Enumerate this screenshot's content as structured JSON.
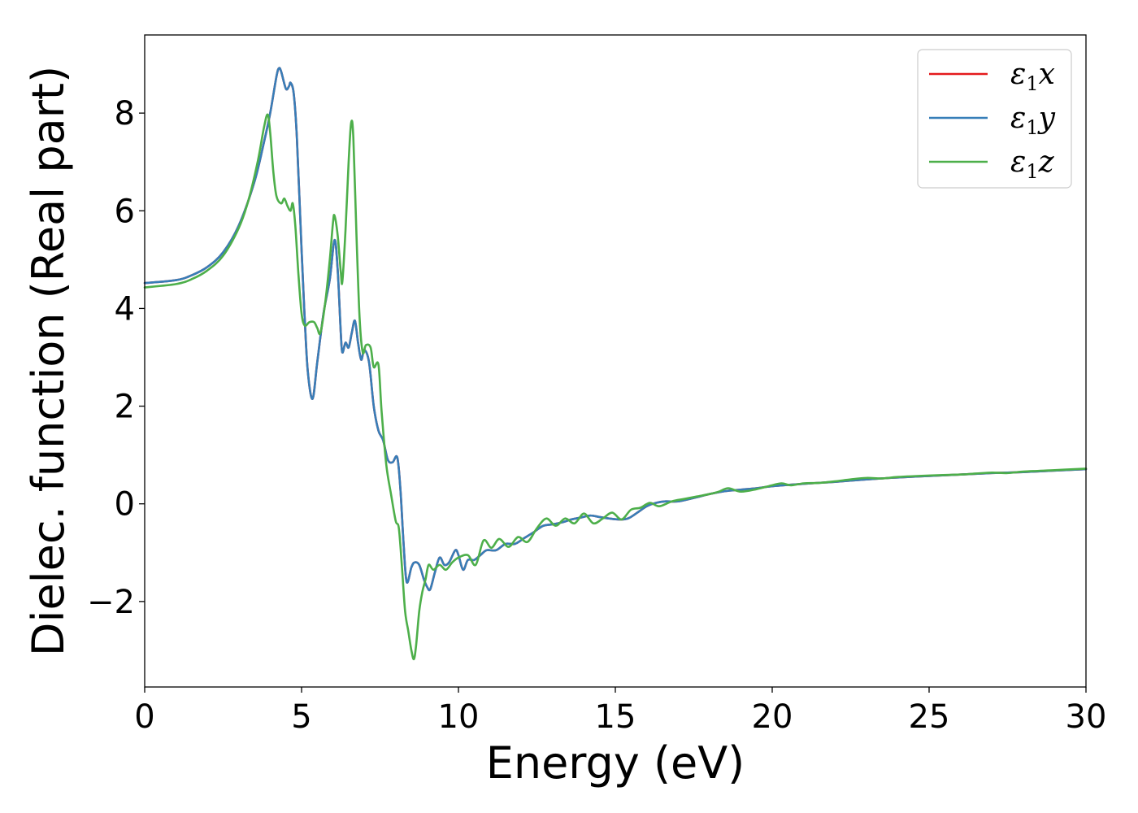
{
  "chart_data": {
    "type": "line",
    "title": "",
    "xlabel": "Energy (eV)",
    "ylabel": "Dielec. function (Real part)",
    "xlim": [
      0,
      30
    ],
    "ylim": [
      -3.75,
      9.6
    ],
    "grid": false,
    "legend_position": "top-right",
    "x_ticks": [
      0,
      5,
      10,
      15,
      20,
      25,
      30
    ],
    "y_ticks": [
      -2,
      0,
      2,
      4,
      6,
      8
    ],
    "x_tick_labels": [
      "0",
      "5",
      "10",
      "15",
      "20",
      "25",
      "30"
    ],
    "y_tick_labels": [
      "−2",
      "0",
      "2",
      "4",
      "6",
      "8"
    ],
    "series": [
      {
        "name": "ε1x",
        "legend": {
          "main": "ε",
          "sub": "1",
          "suffix": "x"
        },
        "color": "#e41a1c",
        "points": [
          [
            0,
            4.52
          ],
          [
            1.0,
            4.58
          ],
          [
            1.5,
            4.68
          ],
          [
            2.0,
            4.85
          ],
          [
            2.5,
            5.15
          ],
          [
            3.0,
            5.7
          ],
          [
            3.5,
            6.6
          ],
          [
            3.8,
            7.4
          ],
          [
            4.0,
            8.0
          ],
          [
            4.2,
            8.75
          ],
          [
            4.28,
            8.92
          ],
          [
            4.35,
            8.85
          ],
          [
            4.5,
            8.5
          ],
          [
            4.6,
            8.55
          ],
          [
            4.65,
            8.62
          ],
          [
            4.75,
            8.4
          ],
          [
            4.85,
            7.5
          ],
          [
            5.0,
            5.2
          ],
          [
            5.1,
            3.8
          ],
          [
            5.2,
            2.7
          ],
          [
            5.35,
            2.15
          ],
          [
            5.5,
            2.9
          ],
          [
            5.7,
            3.9
          ],
          [
            5.9,
            4.6
          ],
          [
            6.05,
            5.4
          ],
          [
            6.15,
            4.8
          ],
          [
            6.25,
            3.5
          ],
          [
            6.3,
            3.1
          ],
          [
            6.4,
            3.3
          ],
          [
            6.5,
            3.2
          ],
          [
            6.6,
            3.5
          ],
          [
            6.7,
            3.75
          ],
          [
            6.8,
            3.3
          ],
          [
            6.9,
            2.95
          ],
          [
            7.0,
            3.15
          ],
          [
            7.15,
            2.9
          ],
          [
            7.3,
            2.0
          ],
          [
            7.45,
            1.5
          ],
          [
            7.6,
            1.3
          ],
          [
            7.75,
            0.9
          ],
          [
            7.9,
            0.85
          ],
          [
            8.05,
            0.95
          ],
          [
            8.15,
            0.3
          ],
          [
            8.25,
            -0.8
          ],
          [
            8.35,
            -1.6
          ],
          [
            8.5,
            -1.3
          ],
          [
            8.6,
            -1.2
          ],
          [
            8.75,
            -1.25
          ],
          [
            8.9,
            -1.55
          ],
          [
            9.0,
            -1.7
          ],
          [
            9.1,
            -1.75
          ],
          [
            9.25,
            -1.4
          ],
          [
            9.4,
            -1.1
          ],
          [
            9.55,
            -1.25
          ],
          [
            9.7,
            -1.2
          ],
          [
            9.9,
            -0.95
          ],
          [
            10.0,
            -1.05
          ],
          [
            10.15,
            -1.35
          ],
          [
            10.3,
            -1.15
          ],
          [
            10.5,
            -1.15
          ],
          [
            10.7,
            -1.05
          ],
          [
            10.9,
            -0.95
          ],
          [
            11.2,
            -0.95
          ],
          [
            11.5,
            -0.82
          ],
          [
            11.8,
            -0.82
          ],
          [
            12.1,
            -0.7
          ],
          [
            12.4,
            -0.58
          ],
          [
            12.7,
            -0.45
          ],
          [
            13.0,
            -0.42
          ],
          [
            13.3,
            -0.38
          ],
          [
            13.6,
            -0.32
          ],
          [
            13.9,
            -0.28
          ],
          [
            14.2,
            -0.24
          ],
          [
            14.5,
            -0.27
          ],
          [
            14.8,
            -0.3
          ],
          [
            15.1,
            -0.32
          ],
          [
            15.4,
            -0.3
          ],
          [
            15.7,
            -0.18
          ],
          [
            16.0,
            -0.05
          ],
          [
            16.3,
            0.02
          ],
          [
            16.6,
            0.05
          ],
          [
            17.0,
            0.05
          ],
          [
            17.5,
            0.12
          ],
          [
            18.0,
            0.2
          ],
          [
            18.5,
            0.26
          ],
          [
            19.0,
            0.29
          ],
          [
            19.5,
            0.32
          ],
          [
            20.0,
            0.36
          ],
          [
            21.0,
            0.41
          ],
          [
            22.0,
            0.45
          ],
          [
            23.0,
            0.5
          ],
          [
            24.0,
            0.54
          ],
          [
            25.0,
            0.57
          ],
          [
            26.0,
            0.6
          ],
          [
            27.0,
            0.63
          ],
          [
            28.0,
            0.65
          ],
          [
            29.0,
            0.68
          ],
          [
            30.0,
            0.71
          ]
        ]
      },
      {
        "name": "ε1y",
        "legend": {
          "main": "ε",
          "sub": "1",
          "suffix": "y"
        },
        "color": "#377eb8",
        "points": [
          [
            0,
            4.52
          ],
          [
            1.0,
            4.58
          ],
          [
            1.5,
            4.68
          ],
          [
            2.0,
            4.85
          ],
          [
            2.5,
            5.15
          ],
          [
            3.0,
            5.7
          ],
          [
            3.5,
            6.6
          ],
          [
            3.8,
            7.4
          ],
          [
            4.0,
            8.0
          ],
          [
            4.2,
            8.75
          ],
          [
            4.28,
            8.92
          ],
          [
            4.35,
            8.85
          ],
          [
            4.5,
            8.5
          ],
          [
            4.6,
            8.55
          ],
          [
            4.65,
            8.62
          ],
          [
            4.75,
            8.4
          ],
          [
            4.85,
            7.5
          ],
          [
            5.0,
            5.2
          ],
          [
            5.1,
            3.8
          ],
          [
            5.2,
            2.7
          ],
          [
            5.35,
            2.15
          ],
          [
            5.5,
            2.9
          ],
          [
            5.7,
            3.9
          ],
          [
            5.9,
            4.6
          ],
          [
            6.05,
            5.4
          ],
          [
            6.15,
            4.8
          ],
          [
            6.25,
            3.5
          ],
          [
            6.3,
            3.1
          ],
          [
            6.4,
            3.3
          ],
          [
            6.5,
            3.2
          ],
          [
            6.6,
            3.5
          ],
          [
            6.7,
            3.75
          ],
          [
            6.8,
            3.3
          ],
          [
            6.9,
            2.95
          ],
          [
            7.0,
            3.15
          ],
          [
            7.15,
            2.9
          ],
          [
            7.3,
            2.0
          ],
          [
            7.45,
            1.5
          ],
          [
            7.6,
            1.3
          ],
          [
            7.75,
            0.9
          ],
          [
            7.9,
            0.85
          ],
          [
            8.05,
            0.95
          ],
          [
            8.15,
            0.3
          ],
          [
            8.25,
            -0.8
          ],
          [
            8.35,
            -1.6
          ],
          [
            8.5,
            -1.3
          ],
          [
            8.6,
            -1.2
          ],
          [
            8.75,
            -1.25
          ],
          [
            8.9,
            -1.55
          ],
          [
            9.0,
            -1.7
          ],
          [
            9.1,
            -1.75
          ],
          [
            9.25,
            -1.4
          ],
          [
            9.4,
            -1.1
          ],
          [
            9.55,
            -1.25
          ],
          [
            9.7,
            -1.2
          ],
          [
            9.9,
            -0.95
          ],
          [
            10.0,
            -1.05
          ],
          [
            10.15,
            -1.35
          ],
          [
            10.3,
            -1.15
          ],
          [
            10.5,
            -1.15
          ],
          [
            10.7,
            -1.05
          ],
          [
            10.9,
            -0.95
          ],
          [
            11.2,
            -0.95
          ],
          [
            11.5,
            -0.82
          ],
          [
            11.8,
            -0.82
          ],
          [
            12.1,
            -0.7
          ],
          [
            12.4,
            -0.58
          ],
          [
            12.7,
            -0.45
          ],
          [
            13.0,
            -0.42
          ],
          [
            13.3,
            -0.38
          ],
          [
            13.6,
            -0.32
          ],
          [
            13.9,
            -0.28
          ],
          [
            14.2,
            -0.24
          ],
          [
            14.5,
            -0.27
          ],
          [
            14.8,
            -0.3
          ],
          [
            15.1,
            -0.32
          ],
          [
            15.4,
            -0.3
          ],
          [
            15.7,
            -0.18
          ],
          [
            16.0,
            -0.05
          ],
          [
            16.3,
            0.02
          ],
          [
            16.6,
            0.05
          ],
          [
            17.0,
            0.05
          ],
          [
            17.5,
            0.12
          ],
          [
            18.0,
            0.2
          ],
          [
            18.5,
            0.26
          ],
          [
            19.0,
            0.29
          ],
          [
            19.5,
            0.32
          ],
          [
            20.0,
            0.36
          ],
          [
            21.0,
            0.41
          ],
          [
            22.0,
            0.45
          ],
          [
            23.0,
            0.5
          ],
          [
            24.0,
            0.54
          ],
          [
            25.0,
            0.57
          ],
          [
            26.0,
            0.6
          ],
          [
            27.0,
            0.63
          ],
          [
            28.0,
            0.65
          ],
          [
            29.0,
            0.68
          ],
          [
            30.0,
            0.71
          ]
        ]
      },
      {
        "name": "ε1z",
        "legend": {
          "main": "ε",
          "sub": "1",
          "suffix": "z"
        },
        "color": "#4daf4a",
        "points": [
          [
            0,
            4.43
          ],
          [
            1.0,
            4.5
          ],
          [
            1.5,
            4.6
          ],
          [
            2.0,
            4.78
          ],
          [
            2.5,
            5.08
          ],
          [
            3.0,
            5.65
          ],
          [
            3.3,
            6.2
          ],
          [
            3.6,
            7.0
          ],
          [
            3.8,
            7.7
          ],
          [
            3.92,
            7.97
          ],
          [
            4.0,
            7.6
          ],
          [
            4.1,
            6.8
          ],
          [
            4.2,
            6.3
          ],
          [
            4.35,
            6.15
          ],
          [
            4.45,
            6.25
          ],
          [
            4.55,
            6.1
          ],
          [
            4.65,
            6.0
          ],
          [
            4.72,
            6.15
          ],
          [
            4.8,
            5.7
          ],
          [
            4.9,
            4.7
          ],
          [
            5.0,
            3.9
          ],
          [
            5.1,
            3.65
          ],
          [
            5.25,
            3.72
          ],
          [
            5.4,
            3.72
          ],
          [
            5.5,
            3.6
          ],
          [
            5.6,
            3.5
          ],
          [
            5.75,
            4.1
          ],
          [
            5.9,
            5.0
          ],
          [
            6.0,
            5.75
          ],
          [
            6.05,
            5.9
          ],
          [
            6.15,
            5.5
          ],
          [
            6.25,
            4.75
          ],
          [
            6.3,
            4.55
          ],
          [
            6.4,
            5.6
          ],
          [
            6.5,
            7.0
          ],
          [
            6.58,
            7.8
          ],
          [
            6.65,
            7.5
          ],
          [
            6.75,
            5.5
          ],
          [
            6.85,
            3.8
          ],
          [
            6.95,
            3.1
          ],
          [
            7.05,
            3.25
          ],
          [
            7.2,
            3.2
          ],
          [
            7.3,
            2.8
          ],
          [
            7.45,
            2.85
          ],
          [
            7.55,
            1.9
          ],
          [
            7.7,
            0.8
          ],
          [
            7.85,
            0.2
          ],
          [
            8.0,
            -0.35
          ],
          [
            8.1,
            -0.5
          ],
          [
            8.2,
            -1.3
          ],
          [
            8.3,
            -2.2
          ],
          [
            8.4,
            -2.6
          ],
          [
            8.5,
            -3.0
          ],
          [
            8.58,
            -3.18
          ],
          [
            8.65,
            -2.9
          ],
          [
            8.75,
            -2.2
          ],
          [
            8.85,
            -1.8
          ],
          [
            8.95,
            -1.55
          ],
          [
            9.05,
            -1.25
          ],
          [
            9.2,
            -1.35
          ],
          [
            9.4,
            -1.25
          ],
          [
            9.6,
            -1.35
          ],
          [
            9.8,
            -1.2
          ],
          [
            10.0,
            -1.1
          ],
          [
            10.3,
            -1.05
          ],
          [
            10.55,
            -1.25
          ],
          [
            10.8,
            -0.75
          ],
          [
            11.05,
            -0.9
          ],
          [
            11.3,
            -0.72
          ],
          [
            11.6,
            -0.88
          ],
          [
            11.9,
            -0.68
          ],
          [
            12.2,
            -0.78
          ],
          [
            12.5,
            -0.5
          ],
          [
            12.8,
            -0.3
          ],
          [
            13.1,
            -0.45
          ],
          [
            13.4,
            -0.3
          ],
          [
            13.7,
            -0.4
          ],
          [
            14.0,
            -0.2
          ],
          [
            14.3,
            -0.4
          ],
          [
            14.6,
            -0.3
          ],
          [
            14.9,
            -0.18
          ],
          [
            15.2,
            -0.32
          ],
          [
            15.5,
            -0.12
          ],
          [
            15.8,
            -0.08
          ],
          [
            16.1,
            0.02
          ],
          [
            16.4,
            -0.05
          ],
          [
            16.8,
            0.05
          ],
          [
            17.2,
            0.1
          ],
          [
            17.6,
            0.15
          ],
          [
            18.0,
            0.2
          ],
          [
            18.3,
            0.25
          ],
          [
            18.6,
            0.32
          ],
          [
            19.0,
            0.25
          ],
          [
            19.5,
            0.3
          ],
          [
            20.0,
            0.38
          ],
          [
            20.3,
            0.42
          ],
          [
            20.6,
            0.38
          ],
          [
            21.0,
            0.42
          ],
          [
            21.5,
            0.43
          ],
          [
            22.0,
            0.46
          ],
          [
            22.5,
            0.5
          ],
          [
            23.0,
            0.53
          ],
          [
            23.5,
            0.52
          ],
          [
            24.0,
            0.55
          ],
          [
            25.0,
            0.58
          ],
          [
            26.0,
            0.6
          ],
          [
            26.5,
            0.62
          ],
          [
            27.0,
            0.64
          ],
          [
            27.5,
            0.63
          ],
          [
            28.0,
            0.66
          ],
          [
            29.0,
            0.69
          ],
          [
            30.0,
            0.72
          ]
        ]
      }
    ]
  }
}
